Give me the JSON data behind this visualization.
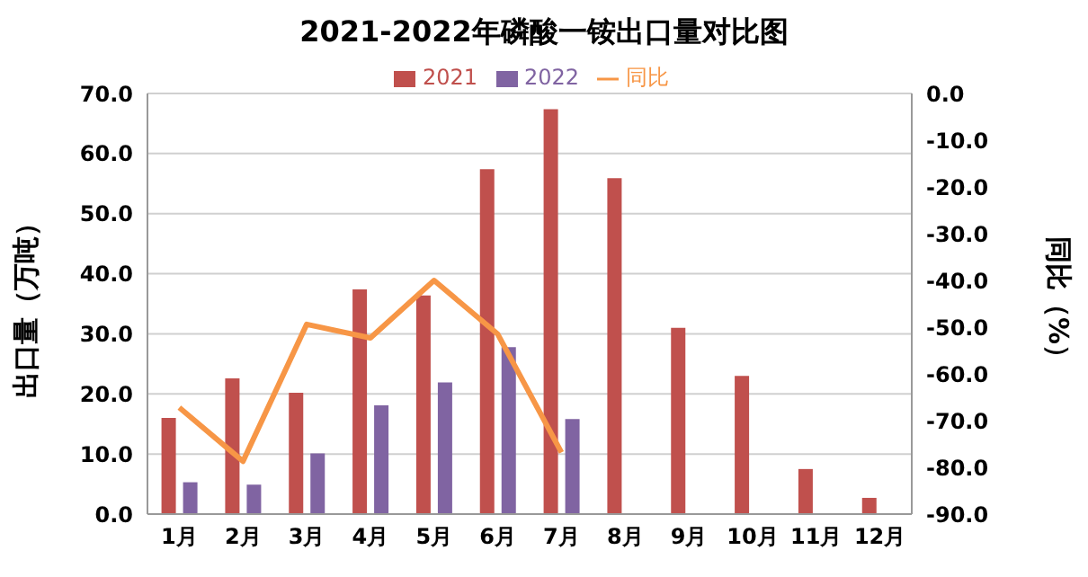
{
  "chart_data": {
    "type": "bar",
    "title": "2021-2022年磷酸一铵出口量对比图",
    "categories": [
      "1月",
      "2月",
      "3月",
      "4月",
      "5月",
      "6月",
      "7月",
      "8月",
      "9月",
      "10月",
      "11月",
      "12月"
    ],
    "series": [
      {
        "name": "2021",
        "color": "#c0504d",
        "values": [
          16.0,
          22.6,
          20.2,
          37.4,
          36.4,
          57.4,
          67.4,
          55.9,
          31.0,
          23.0,
          7.5,
          2.7
        ]
      },
      {
        "name": "2022",
        "color": "#8064a2",
        "values": [
          5.3,
          4.9,
          10.1,
          18.1,
          21.9,
          27.8,
          15.8,
          null,
          null,
          null,
          null,
          null
        ]
      },
      {
        "name": "同比",
        "type": "line",
        "axis": "y2",
        "color": "#f79646",
        "values": [
          -67.2,
          -78.7,
          -49.4,
          -52.3,
          -40.0,
          -51.5,
          -76.8,
          null,
          null,
          null,
          null,
          null
        ]
      }
    ],
    "ylabel": "出口量（万吨）",
    "y2label": "同比（%）",
    "ylim": [
      0,
      70
    ],
    "yticks": [
      {
        "value": 0,
        "label": "0.0"
      },
      {
        "value": 10,
        "label": "10.0"
      },
      {
        "value": 20,
        "label": "20.0"
      },
      {
        "value": 30,
        "label": "30.0"
      },
      {
        "value": 40,
        "label": "40.0"
      },
      {
        "value": 50,
        "label": "50.0"
      },
      {
        "value": 60,
        "label": "60.0"
      },
      {
        "value": 70,
        "label": "70.0"
      }
    ],
    "y2lim": [
      -90,
      0
    ],
    "y2ticks": [
      {
        "value": 0,
        "label": "0.0"
      },
      {
        "value": -10,
        "label": "-10.0"
      },
      {
        "value": -20,
        "label": "-20.0"
      },
      {
        "value": -30,
        "label": "-30.0"
      },
      {
        "value": -40,
        "label": "-40.0"
      },
      {
        "value": -50,
        "label": "-50.0"
      },
      {
        "value": -60,
        "label": "-60.0"
      },
      {
        "value": -70,
        "label": "-70.0"
      },
      {
        "value": -80,
        "label": "-80.0"
      },
      {
        "value": -90,
        "label": "-90.0"
      }
    ],
    "grid": "y",
    "legend": "top",
    "marker": "none",
    "line_style": "solid"
  }
}
